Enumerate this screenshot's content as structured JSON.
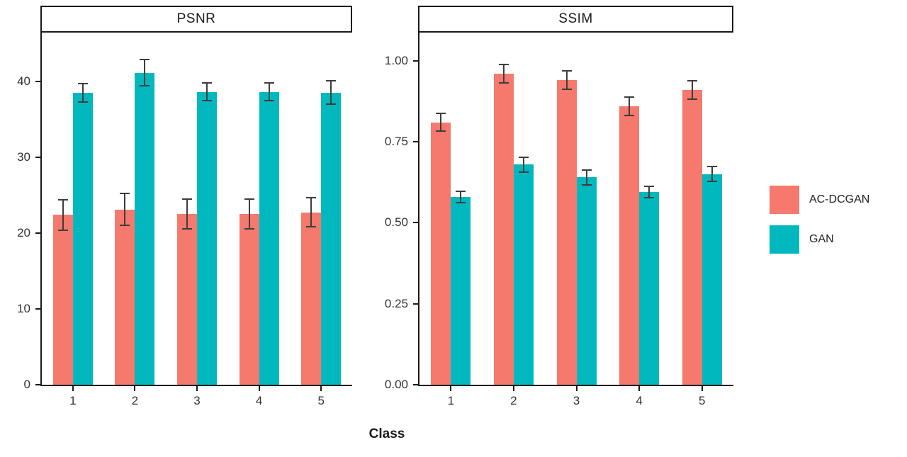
{
  "figure": {
    "xlabel": "Class",
    "legend": [
      {
        "label": "AC-DCGAN",
        "color": "#F5796D"
      },
      {
        "label": "GAN",
        "color": "#00B8BE"
      }
    ],
    "error_bar_color": "#3d3d3d"
  },
  "chart_data": [
    {
      "type": "bar",
      "title": "PSNR",
      "categories": [
        "1",
        "2",
        "3",
        "4",
        "5"
      ],
      "series": [
        {
          "name": "AC-DCGAN",
          "color": "#F5796D",
          "values": [
            22.4,
            23.1,
            22.5,
            22.5,
            22.7
          ],
          "errors": [
            2.1,
            2.2,
            2.1,
            2.1,
            2.0
          ]
        },
        {
          "name": "GAN",
          "color": "#00B8BE",
          "values": [
            38.5,
            41.1,
            38.6,
            38.6,
            38.5
          ],
          "errors": [
            1.3,
            1.8,
            1.3,
            1.3,
            1.6
          ]
        }
      ],
      "xlabel": "Class",
      "ylabel": "",
      "ylim": [
        0,
        46.4
      ],
      "yticks": [
        0,
        10,
        20,
        30,
        40
      ],
      "ytick_labels": [
        "0",
        "10",
        "20",
        "30",
        "40"
      ],
      "grid": false,
      "legend_position": "right"
    },
    {
      "type": "bar",
      "title": "SSIM",
      "categories": [
        "1",
        "2",
        "3",
        "4",
        "5"
      ],
      "series": [
        {
          "name": "AC-DCGAN",
          "color": "#F5796D",
          "values": [
            0.81,
            0.96,
            0.94,
            0.86,
            0.91
          ],
          "errors": [
            0.03,
            0.03,
            0.03,
            0.03,
            0.03
          ]
        },
        {
          "name": "GAN",
          "color": "#00B8BE",
          "values": [
            0.58,
            0.68,
            0.64,
            0.595,
            0.65
          ],
          "errors": [
            0.02,
            0.025,
            0.025,
            0.02,
            0.025
          ]
        }
      ],
      "xlabel": "Class",
      "ylabel": "",
      "ylim": [
        0,
        1.087
      ],
      "yticks": [
        0,
        0.25,
        0.5,
        0.75,
        1.0
      ],
      "ytick_labels": [
        "0.00",
        "0.25",
        "0.50",
        "0.75",
        "1.00"
      ],
      "grid": false,
      "legend_position": "right"
    }
  ]
}
